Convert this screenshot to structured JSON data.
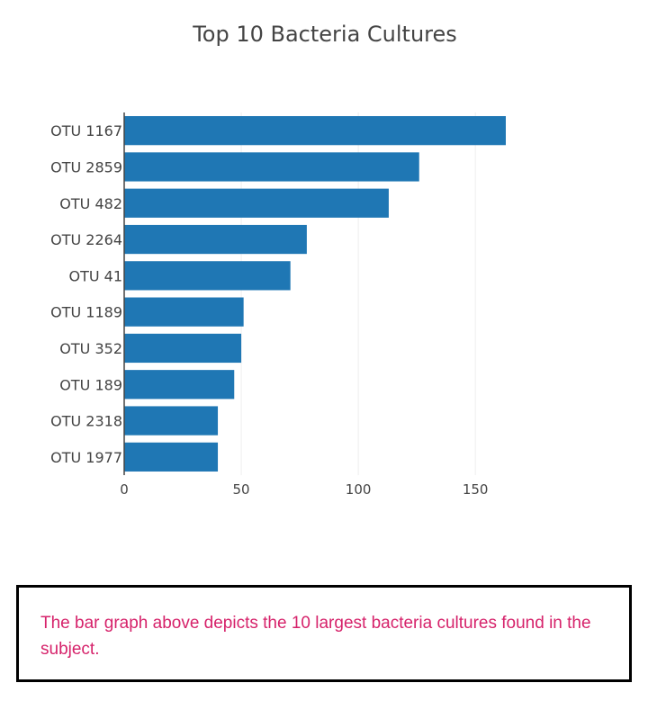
{
  "chart_data": {
    "type": "bar",
    "orientation": "horizontal",
    "title": "Top 10 Bacteria Cultures",
    "categories": [
      "OTU 1167",
      "OTU 2859",
      "OTU 482",
      "OTU 2264",
      "OTU 41",
      "OTU 1189",
      "OTU 352",
      "OTU 189",
      "OTU 2318",
      "OTU 1977"
    ],
    "values": [
      163,
      126,
      113,
      78,
      71,
      51,
      50,
      47,
      40,
      40
    ],
    "xlim": [
      0,
      170
    ],
    "xticks": [
      0,
      50,
      100,
      150
    ],
    "xlabel": "",
    "ylabel": "",
    "grid": true,
    "bar_color": "#1f77b4"
  },
  "description": {
    "text": "The bar graph above depicts the 10 largest bacteria cultures found in the subject.",
    "color": "#d6236b"
  }
}
